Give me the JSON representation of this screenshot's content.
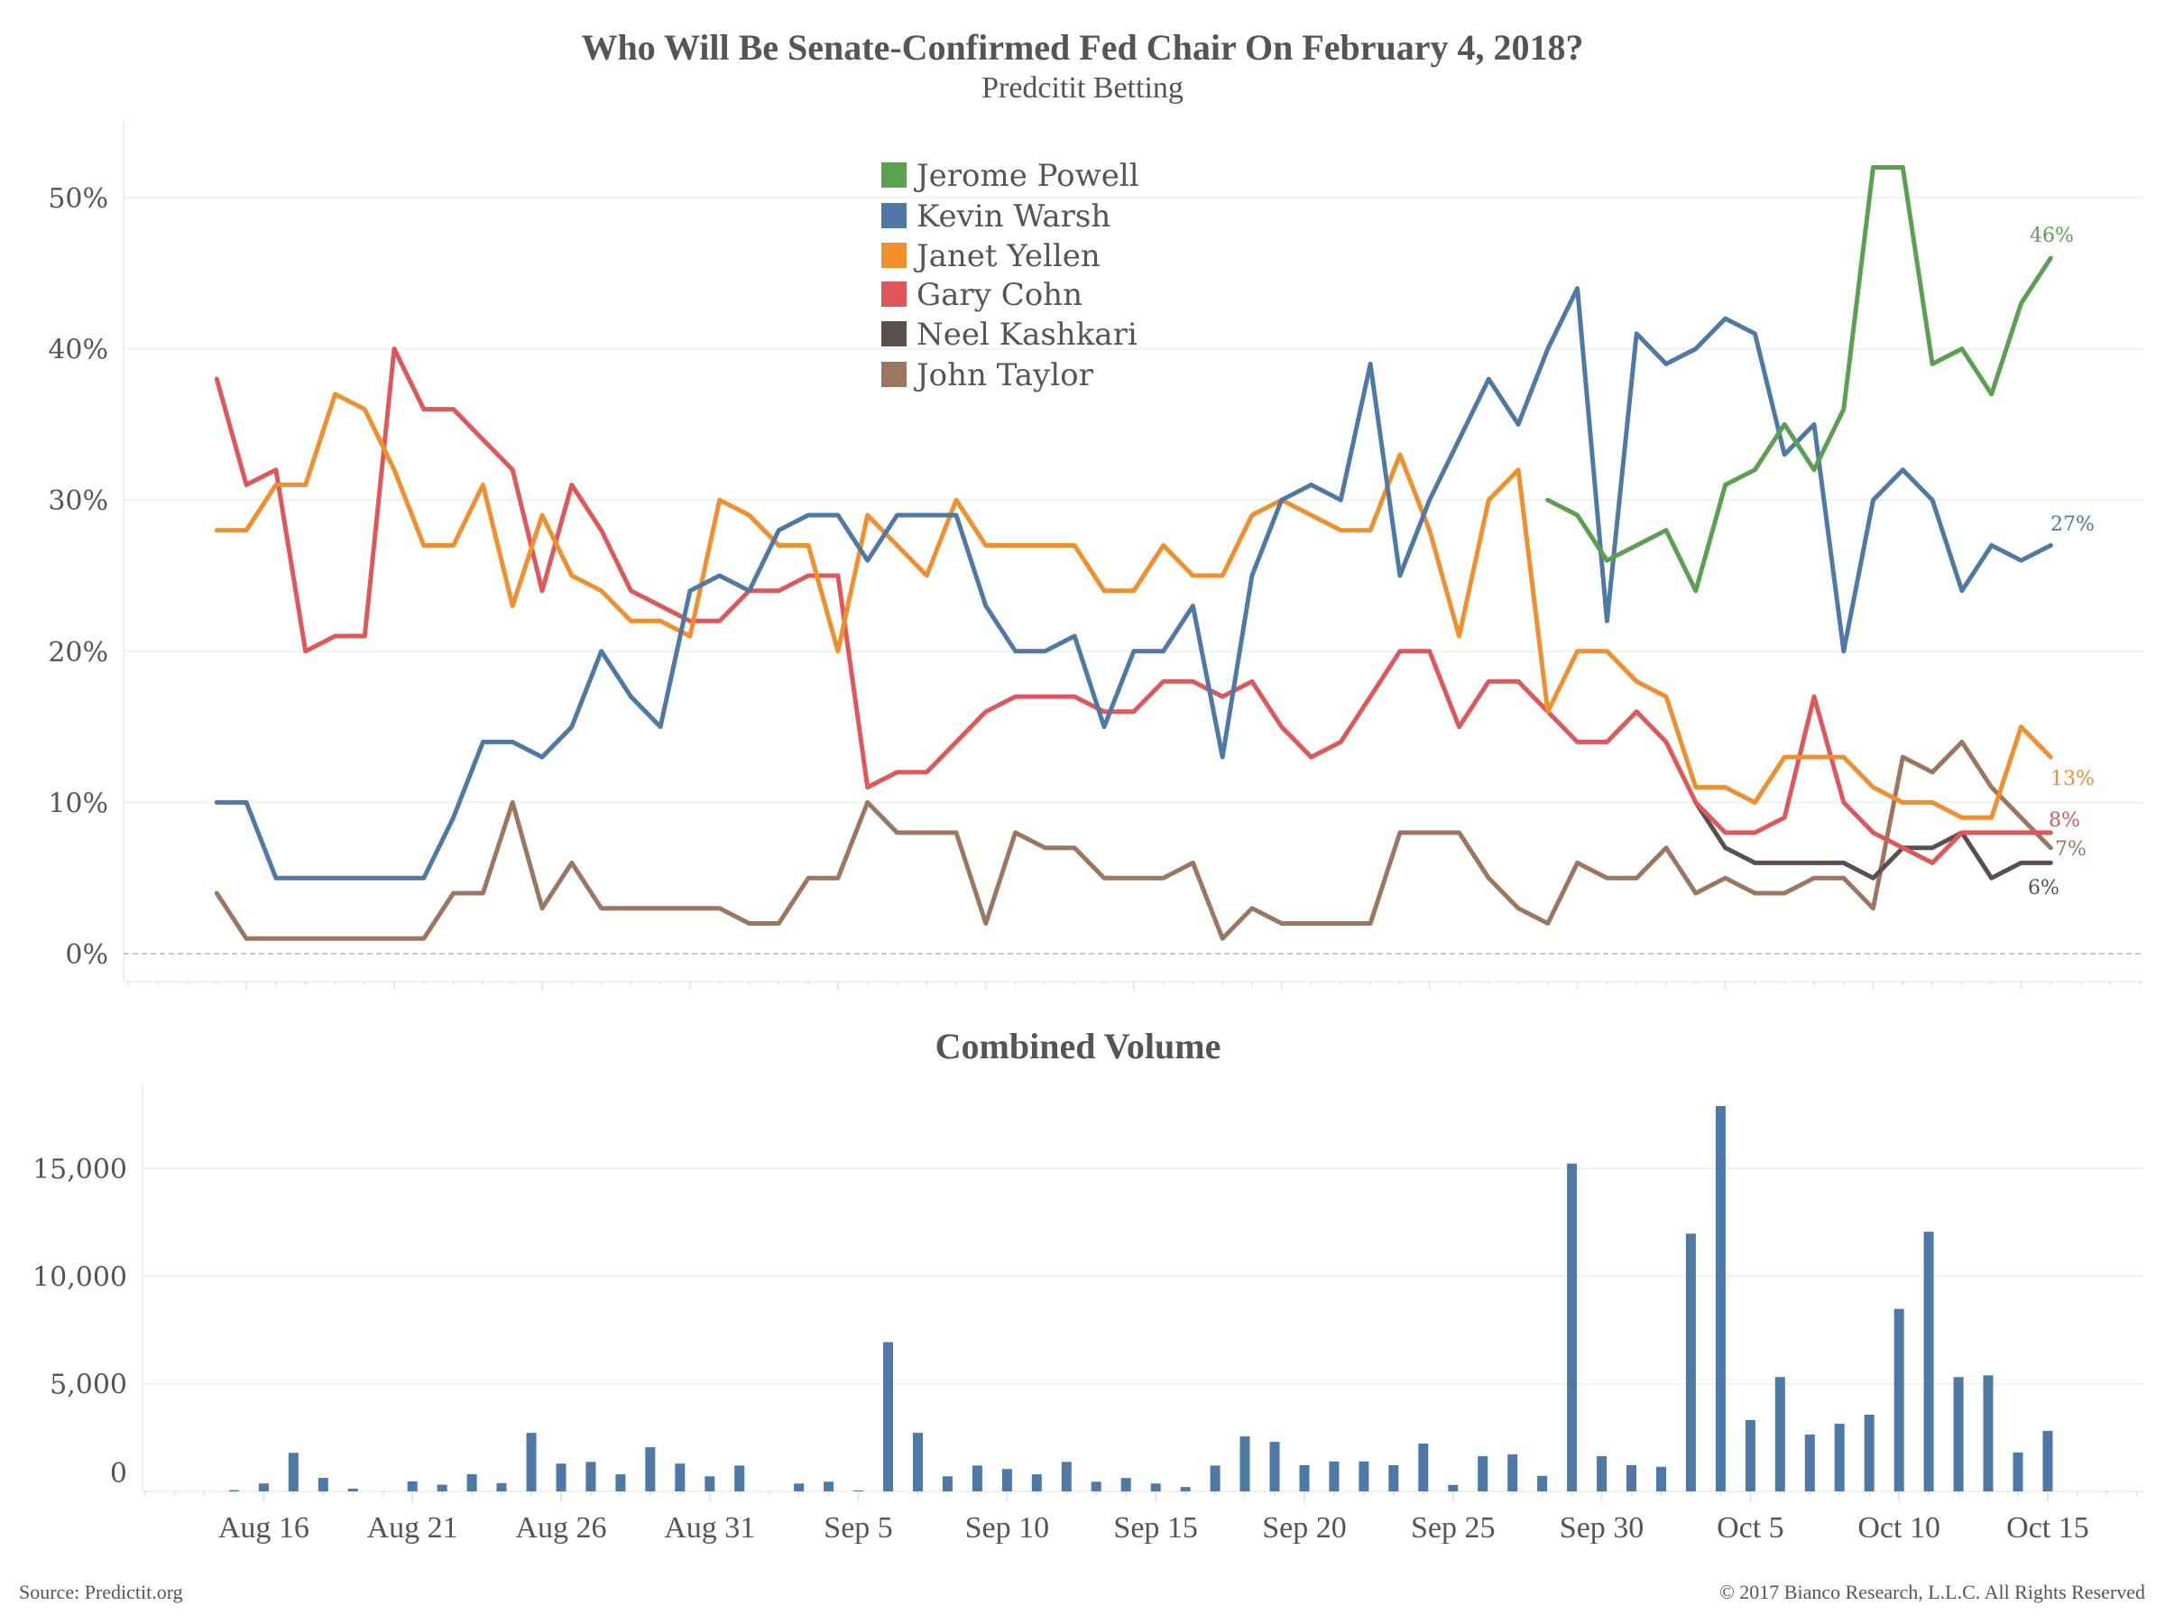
{
  "chart_data": [
    {
      "type": "line",
      "title": "Who Will Be Senate-Confirmed Fed Chair On February 4, 2018?",
      "subtitle": "Predcitit Betting",
      "xlabel": "",
      "ylabel": "",
      "x_start": "Aug 15",
      "x_end": "Oct 16",
      "ylim": [
        0,
        55
      ],
      "yticks": [
        "0%",
        "10%",
        "20%",
        "30%",
        "40%",
        "50%"
      ],
      "ytick_values": [
        0,
        10,
        20,
        30,
        40,
        50
      ],
      "grid": true,
      "legend_position": "top-center",
      "series": [
        {
          "name": "Jerome Powell",
          "color": "#59a14f",
          "end_label": "46%",
          "values": [
            null,
            null,
            null,
            null,
            null,
            null,
            null,
            null,
            null,
            null,
            null,
            null,
            null,
            null,
            null,
            null,
            null,
            null,
            null,
            null,
            null,
            null,
            null,
            null,
            null,
            null,
            null,
            null,
            null,
            null,
            null,
            null,
            null,
            null,
            null,
            null,
            null,
            null,
            null,
            null,
            null,
            null,
            null,
            null,
            null,
            30,
            29,
            26,
            27,
            28,
            24,
            31,
            32,
            35,
            32,
            36,
            52,
            52,
            39,
            40,
            37,
            43,
            46
          ]
        },
        {
          "name": "Kevin Warsh",
          "color": "#4e79a7",
          "end_label": "27%",
          "values": [
            10,
            10,
            5,
            5,
            5,
            5,
            5,
            5,
            9,
            14,
            14,
            13,
            15,
            20,
            17,
            15,
            24,
            25,
            24,
            28,
            29,
            29,
            26,
            29,
            29,
            29,
            23,
            20,
            20,
            21,
            15,
            20,
            20,
            23,
            13,
            25,
            30,
            31,
            30,
            39,
            25,
            30,
            34,
            38,
            35,
            40,
            44,
            22,
            41,
            39,
            40,
            42,
            41,
            33,
            35,
            20,
            30,
            32,
            30,
            24,
            27,
            26,
            27
          ]
        },
        {
          "name": "Janet Yellen",
          "color": "#f28e2b",
          "end_label": "13%",
          "values": [
            28,
            28,
            31,
            31,
            37,
            36,
            32,
            27,
            27,
            31,
            23,
            29,
            25,
            24,
            22,
            22,
            21,
            30,
            29,
            27,
            27,
            20,
            29,
            27,
            25,
            30,
            27,
            27,
            27,
            27,
            24,
            24,
            27,
            25,
            25,
            29,
            30,
            29,
            28,
            28,
            33,
            28,
            21,
            30,
            32,
            16,
            20,
            20,
            18,
            17,
            11,
            11,
            10,
            13,
            13,
            13,
            11,
            10,
            10,
            9,
            9,
            15,
            13
          ]
        },
        {
          "name": "Gary Cohn",
          "color": "#e15759",
          "end_label": "8%",
          "values": [
            38,
            31,
            32,
            20,
            21,
            21,
            40,
            36,
            36,
            34,
            32,
            24,
            31,
            28,
            24,
            23,
            22,
            22,
            24,
            24,
            25,
            25,
            11,
            12,
            12,
            14,
            16,
            17,
            17,
            17,
            16,
            16,
            18,
            18,
            17,
            18,
            15,
            13,
            14,
            17,
            20,
            20,
            15,
            18,
            18,
            16,
            14,
            14,
            16,
            14,
            10,
            8,
            8,
            9,
            17,
            10,
            8,
            7,
            6,
            8,
            8,
            8,
            8
          ]
        },
        {
          "name": "Neel Kashkari",
          "color": "#5a4f4d",
          "end_label": "6%",
          "values": [
            null,
            null,
            null,
            null,
            null,
            null,
            null,
            null,
            null,
            null,
            null,
            null,
            null,
            null,
            null,
            null,
            null,
            null,
            null,
            null,
            null,
            null,
            null,
            null,
            null,
            null,
            null,
            null,
            null,
            null,
            null,
            null,
            null,
            null,
            null,
            null,
            null,
            null,
            null,
            null,
            null,
            null,
            null,
            null,
            null,
            null,
            null,
            null,
            null,
            null,
            10,
            7,
            6,
            6,
            6,
            6,
            5,
            7,
            7,
            8,
            5,
            6,
            6
          ]
        },
        {
          "name": "John Taylor",
          "color": "#9c7660",
          "end_label": "7%",
          "values": [
            4,
            1,
            1,
            1,
            1,
            1,
            1,
            1,
            4,
            4,
            10,
            3,
            6,
            3,
            3,
            3,
            3,
            3,
            2,
            2,
            5,
            5,
            10,
            8,
            8,
            8,
            2,
            8,
            7,
            7,
            5,
            5,
            5,
            6,
            1,
            3,
            2,
            2,
            2,
            2,
            8,
            8,
            8,
            5,
            3,
            2,
            6,
            5,
            5,
            7,
            4,
            5,
            4,
            4,
            5,
            5,
            3,
            13,
            12,
            14,
            11,
            9,
            7
          ]
        }
      ]
    },
    {
      "type": "bar",
      "title": "Combined Volume",
      "xlabel": "",
      "ylabel": "",
      "ylim": [
        0,
        18500
      ],
      "yticks": [
        "0",
        "5,000",
        "10,000",
        "15,000"
      ],
      "ytick_values": [
        0,
        5000,
        10000,
        15000
      ],
      "grid": true,
      "color": "#4e79a7",
      "categories": [
        "Aug 15",
        "Aug 16",
        "Aug 17",
        "Aug 18",
        "Aug 19",
        "Aug 20",
        "Aug 21",
        "Aug 22",
        "Aug 23",
        "Aug 24",
        "Aug 25",
        "Aug 26",
        "Aug 27",
        "Aug 28",
        "Aug 29",
        "Aug 30",
        "Aug 31",
        "Sep 1",
        "Sep 2",
        "Sep 3",
        "Sep 4",
        "Sep 5",
        "Sep 6",
        "Sep 7",
        "Sep 8",
        "Sep 9",
        "Sep 10",
        "Sep 11",
        "Sep 12",
        "Sep 13",
        "Sep 14",
        "Sep 15",
        "Sep 16",
        "Sep 17",
        "Sep 18",
        "Sep 19",
        "Sep 20",
        "Sep 21",
        "Sep 22",
        "Sep 23",
        "Sep 24",
        "Sep 25",
        "Sep 26",
        "Sep 27",
        "Sep 28",
        "Sep 29",
        "Sep 30",
        "Oct 1",
        "Oct 2",
        "Oct 3",
        "Oct 4",
        "Oct 5",
        "Oct 6",
        "Oct 7",
        "Oct 8",
        "Oct 9",
        "Oct 10",
        "Oct 11",
        "Oct 12",
        "Oct 13",
        "Oct 14",
        "Oct 15"
      ],
      "values": [
        60,
        370,
        1790,
        630,
        120,
        0,
        460,
        310,
        800,
        385,
        2720,
        1290,
        1370,
        790,
        2050,
        1290,
        700,
        1200,
        0,
        365,
        450,
        40,
        6930,
        2720,
        700,
        1200,
        1040,
        790,
        1370,
        450,
        620,
        365,
        200,
        1200,
        2550,
        2300,
        1220,
        1390,
        1390,
        1220,
        2220,
        300,
        1640,
        1720,
        720,
        15220,
        1640,
        1220,
        1140,
        11970,
        17890,
        3310,
        5310,
        2640,
        3140,
        3560,
        8470,
        12060,
        5310,
        5390,
        1810,
        2810
      ]
    }
  ],
  "x_axis_labels": [
    "Aug 16",
    "Aug 21",
    "Aug 26",
    "Aug 31",
    "Sep 5",
    "Sep 10",
    "Sep 15",
    "Sep 20",
    "Sep 25",
    "Sep 30",
    "Oct 5",
    "Oct 10",
    "Oct 15"
  ],
  "footer": {
    "source": "Source: Predictit.org",
    "copyright": "© 2017 Bianco Research, L.L.C. All Rights Reserved"
  },
  "colors": {
    "text": "#555555",
    "grid": "#f0f0f0",
    "zero_line": "#c8c8c8"
  }
}
